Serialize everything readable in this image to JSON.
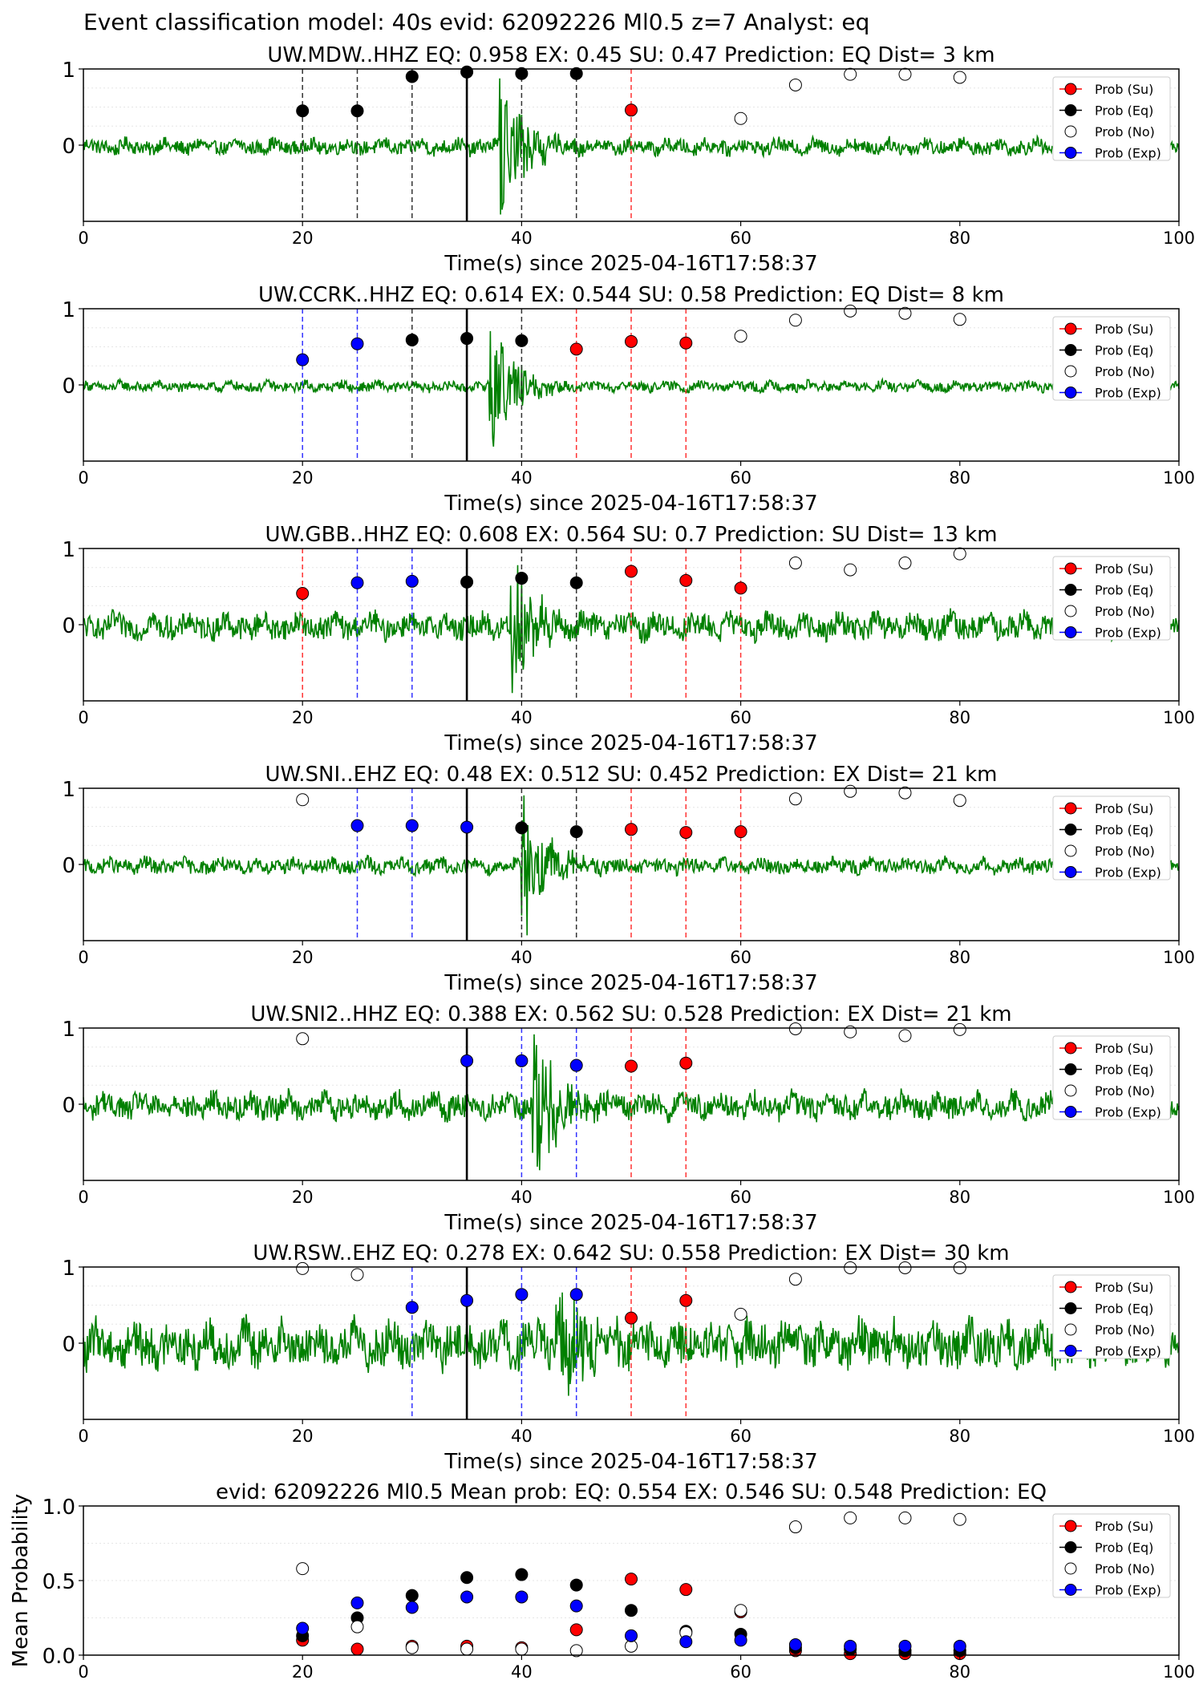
{
  "suptitle": "Event classification model: 40s evid: 62092226 Ml0.5 z=7 Analyst: eq",
  "legend_labels": [
    "Prob (Su)",
    "Prob (Eq)",
    "Prob (No)",
    "Prob (Exp)"
  ],
  "colors": {
    "waveform": "#008000",
    "su": "#ff0000",
    "eq": "#000000",
    "no": "#ffffff",
    "exp": "#0000ff"
  },
  "chart_data": [
    {
      "type": "scatter",
      "title": "UW.MDW..HHZ   EQ: 0.958  EX: 0.45  SU: 0.47   Prediction: EQ    Dist= 3 km",
      "xlabel": "Time(s) since 2025-04-16T17:58:37",
      "xlim": [
        0,
        100
      ],
      "ylim": [
        -1,
        1
      ],
      "xticks": [
        "0",
        "20",
        "40",
        "60",
        "80",
        "100"
      ],
      "yticks": [
        "1",
        "0"
      ],
      "origin_time": 35,
      "signal_onset": 38,
      "noise_amp": 0.12,
      "windows": [
        {
          "t": 20,
          "cls": "eq",
          "p": 0.45
        },
        {
          "t": 25,
          "cls": "eq",
          "p": 0.45
        },
        {
          "t": 30,
          "cls": "eq",
          "p": 0.9
        },
        {
          "t": 35,
          "cls": "eq",
          "p": 0.96
        },
        {
          "t": 40,
          "cls": "eq",
          "p": 0.94
        },
        {
          "t": 45,
          "cls": "eq",
          "p": 0.94
        },
        {
          "t": 50,
          "cls": "su",
          "p": 0.46
        },
        {
          "t": 60,
          "cls": "no",
          "p": 0.35
        },
        {
          "t": 65,
          "cls": "no",
          "p": 0.79
        },
        {
          "t": 70,
          "cls": "no",
          "p": 0.93
        },
        {
          "t": 75,
          "cls": "no",
          "p": 0.93
        },
        {
          "t": 80,
          "cls": "no",
          "p": 0.89
        }
      ]
    },
    {
      "type": "scatter",
      "title": "UW.CCRK..HHZ   EQ: 0.614  EX: 0.544  SU: 0.58   Prediction: EQ    Dist= 8 km",
      "xlabel": "Time(s) since 2025-04-16T17:58:37",
      "xlim": [
        0,
        100
      ],
      "ylim": [
        -1,
        1
      ],
      "xticks": [
        "0",
        "20",
        "40",
        "60",
        "80",
        "100"
      ],
      "yticks": [
        "1",
        "0"
      ],
      "origin_time": 35,
      "signal_onset": 37,
      "noise_amp": 0.08,
      "windows": [
        {
          "t": 20,
          "cls": "exp",
          "p": 0.33
        },
        {
          "t": 25,
          "cls": "exp",
          "p": 0.54
        },
        {
          "t": 30,
          "cls": "eq",
          "p": 0.59
        },
        {
          "t": 35,
          "cls": "eq",
          "p": 0.61
        },
        {
          "t": 40,
          "cls": "eq",
          "p": 0.58
        },
        {
          "t": 45,
          "cls": "su",
          "p": 0.47
        },
        {
          "t": 50,
          "cls": "su",
          "p": 0.57
        },
        {
          "t": 55,
          "cls": "su",
          "p": 0.55
        },
        {
          "t": 60,
          "cls": "no",
          "p": 0.64
        },
        {
          "t": 65,
          "cls": "no",
          "p": 0.85
        },
        {
          "t": 70,
          "cls": "no",
          "p": 0.97
        },
        {
          "t": 75,
          "cls": "no",
          "p": 0.94
        },
        {
          "t": 80,
          "cls": "no",
          "p": 0.86
        }
      ]
    },
    {
      "type": "scatter",
      "title": "UW.GBB..HHZ   EQ: 0.608  EX: 0.564  SU: 0.7   Prediction: SU    Dist= 13 km",
      "xlabel": "Time(s) since 2025-04-16T17:58:37",
      "xlim": [
        0,
        100
      ],
      "ylim": [
        -1,
        1
      ],
      "xticks": [
        "0",
        "20",
        "40",
        "60",
        "80",
        "100"
      ],
      "yticks": [
        "1",
        "0"
      ],
      "origin_time": 35,
      "signal_onset": 39,
      "noise_amp": 0.2,
      "windows": [
        {
          "t": 20,
          "cls": "su",
          "p": 0.41
        },
        {
          "t": 25,
          "cls": "exp",
          "p": 0.55
        },
        {
          "t": 30,
          "cls": "exp",
          "p": 0.57
        },
        {
          "t": 35,
          "cls": "eq",
          "p": 0.56
        },
        {
          "t": 40,
          "cls": "eq",
          "p": 0.61
        },
        {
          "t": 45,
          "cls": "eq",
          "p": 0.55
        },
        {
          "t": 50,
          "cls": "su",
          "p": 0.7
        },
        {
          "t": 55,
          "cls": "su",
          "p": 0.58
        },
        {
          "t": 60,
          "cls": "su",
          "p": 0.48
        },
        {
          "t": 65,
          "cls": "no",
          "p": 0.81
        },
        {
          "t": 70,
          "cls": "no",
          "p": 0.72
        },
        {
          "t": 75,
          "cls": "no",
          "p": 0.81
        },
        {
          "t": 80,
          "cls": "no",
          "p": 0.93
        }
      ]
    },
    {
      "type": "scatter",
      "title": "UW.SNI..EHZ   EQ: 0.48  EX: 0.512  SU: 0.452   Prediction: EX    Dist= 21 km",
      "xlabel": "Time(s) since 2025-04-16T17:58:37",
      "xlim": [
        0,
        100
      ],
      "ylim": [
        -1,
        1
      ],
      "xticks": [
        "0",
        "20",
        "40",
        "60",
        "80",
        "100"
      ],
      "yticks": [
        "1",
        "0"
      ],
      "origin_time": 35,
      "signal_onset": 40,
      "noise_amp": 0.12,
      "windows": [
        {
          "t": 20,
          "cls": "no",
          "p": 0.85
        },
        {
          "t": 25,
          "cls": "exp",
          "p": 0.51
        },
        {
          "t": 30,
          "cls": "exp",
          "p": 0.51
        },
        {
          "t": 35,
          "cls": "exp",
          "p": 0.49
        },
        {
          "t": 40,
          "cls": "eq",
          "p": 0.48
        },
        {
          "t": 45,
          "cls": "eq",
          "p": 0.43
        },
        {
          "t": 50,
          "cls": "su",
          "p": 0.46
        },
        {
          "t": 55,
          "cls": "su",
          "p": 0.42
        },
        {
          "t": 60,
          "cls": "su",
          "p": 0.43
        },
        {
          "t": 65,
          "cls": "no",
          "p": 0.86
        },
        {
          "t": 70,
          "cls": "no",
          "p": 0.96
        },
        {
          "t": 75,
          "cls": "no",
          "p": 0.94
        },
        {
          "t": 80,
          "cls": "no",
          "p": 0.84
        }
      ]
    },
    {
      "type": "scatter",
      "title": "UW.SNI2..HHZ   EQ: 0.388  EX: 0.562  SU: 0.528   Prediction: EX    Dist= 21 km",
      "xlabel": "Time(s) since 2025-04-16T17:58:37",
      "xlim": [
        0,
        100
      ],
      "ylim": [
        -1,
        1
      ],
      "xticks": [
        "0",
        "20",
        "40",
        "60",
        "80",
        "100"
      ],
      "yticks": [
        "1",
        "0"
      ],
      "origin_time": 35,
      "signal_onset": 41,
      "noise_amp": 0.2,
      "windows": [
        {
          "t": 20,
          "cls": "no",
          "p": 0.86
        },
        {
          "t": 35,
          "cls": "exp",
          "p": 0.57
        },
        {
          "t": 40,
          "cls": "exp",
          "p": 0.57
        },
        {
          "t": 45,
          "cls": "exp",
          "p": 0.51
        },
        {
          "t": 50,
          "cls": "su",
          "p": 0.5
        },
        {
          "t": 55,
          "cls": "su",
          "p": 0.54
        },
        {
          "t": 65,
          "cls": "no",
          "p": 0.99
        },
        {
          "t": 70,
          "cls": "no",
          "p": 0.95
        },
        {
          "t": 75,
          "cls": "no",
          "p": 0.9
        },
        {
          "t": 80,
          "cls": "no",
          "p": 0.98
        }
      ]
    },
    {
      "type": "scatter",
      "title": "UW.RSW..EHZ   EQ: 0.278  EX: 0.642  SU: 0.558   Prediction: EX    Dist= 30 km",
      "xlabel": "Time(s) since 2025-04-16T17:58:37",
      "xlim": [
        0,
        100
      ],
      "ylim": [
        -1,
        1
      ],
      "xticks": [
        "0",
        "20",
        "40",
        "60",
        "80",
        "100"
      ],
      "yticks": [
        "1",
        "0"
      ],
      "origin_time": 35,
      "signal_onset": 43,
      "noise_amp": 0.35,
      "windows": [
        {
          "t": 20,
          "cls": "no",
          "p": 0.98
        },
        {
          "t": 25,
          "cls": "no",
          "p": 0.9
        },
        {
          "t": 30,
          "cls": "exp",
          "p": 0.47
        },
        {
          "t": 35,
          "cls": "exp",
          "p": 0.56
        },
        {
          "t": 40,
          "cls": "exp",
          "p": 0.64
        },
        {
          "t": 45,
          "cls": "exp",
          "p": 0.64
        },
        {
          "t": 50,
          "cls": "su",
          "p": 0.33
        },
        {
          "t": 55,
          "cls": "su",
          "p": 0.56
        },
        {
          "t": 60,
          "cls": "no",
          "p": 0.38
        },
        {
          "t": 65,
          "cls": "no",
          "p": 0.84
        },
        {
          "t": 70,
          "cls": "no",
          "p": 0.99
        },
        {
          "t": 75,
          "cls": "no",
          "p": 0.99
        },
        {
          "t": 80,
          "cls": "no",
          "p": 0.99
        }
      ]
    },
    {
      "type": "scatter",
      "title": "evid: 62092226  Ml0.5   Mean prob:   EQ: 0.554  EX: 0.546  SU: 0.548   Prediction: EQ",
      "xlabel": "",
      "ylabel": "Mean Probability",
      "xlim": [
        0,
        100
      ],
      "ylim": [
        0,
        1
      ],
      "xticks": [
        "0",
        "20",
        "40",
        "60",
        "80",
        "100"
      ],
      "yticks": [
        "1.0",
        "0.5",
        "0.0"
      ],
      "series": [
        {
          "name": "Prob (Su)",
          "cls": "su",
          "x": [
            20,
            25,
            30,
            35,
            40,
            45,
            50,
            55,
            60,
            65,
            70,
            75,
            80
          ],
          "y": [
            0.1,
            0.04,
            0.06,
            0.06,
            0.05,
            0.17,
            0.51,
            0.44,
            0.29,
            0.03,
            0.01,
            0.01,
            0.01
          ]
        },
        {
          "name": "Prob (Eq)",
          "cls": "eq",
          "x": [
            20,
            25,
            30,
            35,
            40,
            45,
            50,
            55,
            60,
            65,
            70,
            75,
            80
          ],
          "y": [
            0.13,
            0.25,
            0.4,
            0.52,
            0.54,
            0.47,
            0.3,
            0.16,
            0.14,
            0.05,
            0.04,
            0.03,
            0.03
          ]
        },
        {
          "name": "Prob (No)",
          "cls": "no",
          "x": [
            20,
            25,
            30,
            35,
            40,
            45,
            50,
            55,
            60,
            65,
            70,
            75,
            80
          ],
          "y": [
            0.58,
            0.19,
            0.05,
            0.04,
            0.04,
            0.03,
            0.06,
            0.15,
            0.3,
            0.86,
            0.92,
            0.92,
            0.91
          ]
        },
        {
          "name": "Prob (Exp)",
          "cls": "exp",
          "x": [
            20,
            25,
            30,
            35,
            40,
            45,
            50,
            55,
            60,
            65,
            70,
            75,
            80
          ],
          "y": [
            0.18,
            0.35,
            0.32,
            0.39,
            0.39,
            0.33,
            0.13,
            0.09,
            0.1,
            0.07,
            0.06,
            0.06,
            0.06
          ]
        }
      ]
    }
  ]
}
